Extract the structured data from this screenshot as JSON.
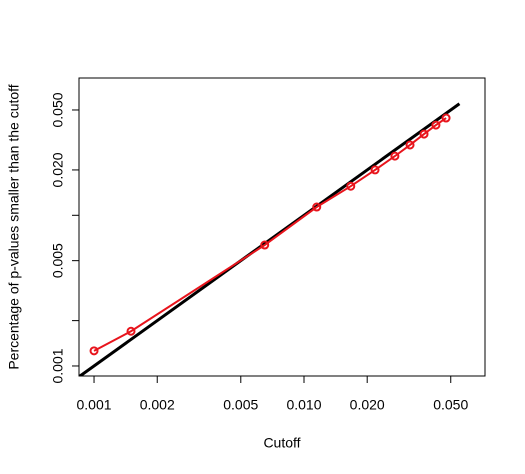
{
  "chart_data": {
    "type": "line",
    "x_label": "Cutoff",
    "y_label": "Percentage of p-values smaller than the cutoff",
    "x": [
      0.001,
      0.0015,
      0.0065,
      0.0115,
      0.0167,
      0.0218,
      0.0271,
      0.032,
      0.0373,
      0.0425,
      0.0475
    ],
    "y": [
      0.00126,
      0.0017,
      0.00635,
      0.01135,
      0.0156,
      0.02,
      0.0247,
      0.0293,
      0.0346,
      0.0397,
      0.0442
    ],
    "color": "#e8141c",
    "markers": true,
    "reference_line": {
      "x": [
        0.0008,
        0.055
      ],
      "y": [
        0.0008,
        0.055
      ],
      "color": "#000000"
    },
    "xlog": true,
    "ylog": true,
    "xlim": [
      0.000848,
      0.0728
    ],
    "ylim": [
      0.000858,
      0.0815
    ],
    "xticks": [
      0.001,
      0.002,
      0.005,
      {
        "value": 0.01,
        "label": "0.010"
      },
      {
        "value": 0.02,
        "label": "0.020"
      },
      {
        "value": 0.05,
        "label": "0.050"
      }
    ],
    "yticks": [
      0.001,
      {
        "value": 0.002
      },
      0.005,
      {
        "value": 0.01
      },
      {
        "value": 0.02,
        "label": "0.020"
      },
      {
        "value": 0.05,
        "label": "0.050"
      }
    ]
  }
}
